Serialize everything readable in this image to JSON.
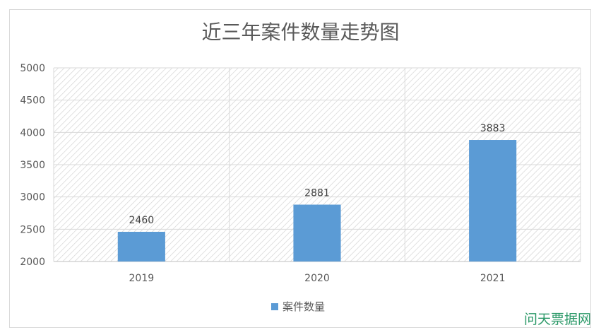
{
  "chart_data": {
    "type": "bar",
    "title": "近三年案件数量走势图",
    "categories": [
      "2019",
      "2020",
      "2021"
    ],
    "series": [
      {
        "name": "案件数量",
        "values": [
          2460,
          2881,
          3883
        ],
        "color": "#5b9bd5"
      }
    ],
    "ylim": [
      2000,
      5000
    ],
    "yticks": [
      "2000",
      "2500",
      "3000",
      "3500",
      "4000",
      "4500",
      "5000"
    ],
    "data_labels": [
      "2460",
      "2881",
      "3883"
    ],
    "grid": true,
    "legend": "bottom",
    "xlabel": "",
    "ylabel": ""
  },
  "watermark": "问天票据网"
}
